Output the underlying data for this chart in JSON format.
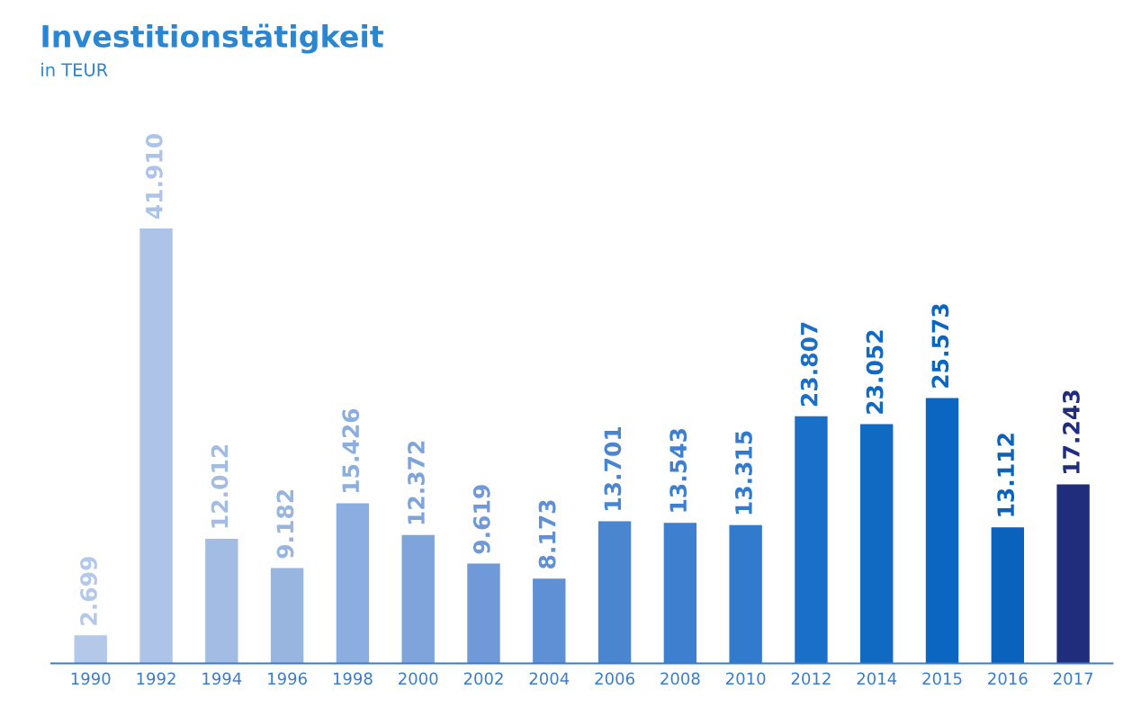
{
  "chart_data": {
    "type": "bar",
    "title": "Investitionstätigkeit",
    "subtitle": "in TEUR",
    "categories": [
      "1990",
      "1992",
      "1994",
      "1996",
      "1998",
      "2000",
      "2002",
      "2004",
      "2006",
      "2008",
      "2010",
      "2012",
      "2014",
      "2015",
      "2016",
      "2017"
    ],
    "values": [
      2699,
      41910,
      12012,
      9182,
      15426,
      12372,
      9619,
      8173,
      13701,
      13543,
      13315,
      23807,
      23052,
      25573,
      13112,
      17243
    ],
    "value_labels": [
      "2.699",
      "41.910",
      "12.012",
      "9.182",
      "15.426",
      "12.372",
      "9.619",
      "8.173",
      "13.701",
      "13.543",
      "13.315",
      "23.807",
      "23.052",
      "25.573",
      "13.112",
      "17.243"
    ],
    "colors": [
      "#b4c8ea",
      "#adc4e8",
      "#a2bce4",
      "#98b5e0",
      "#8cade0",
      "#7fa4dc",
      "#6f99d8",
      "#5f8fd4",
      "#4a85d0",
      "#3e80cf",
      "#327acc",
      "#1a70c6",
      "#106ac2",
      "#0a66c0",
      "#0a62bc",
      "#202d7c"
    ],
    "grid": false,
    "legend": false
  }
}
